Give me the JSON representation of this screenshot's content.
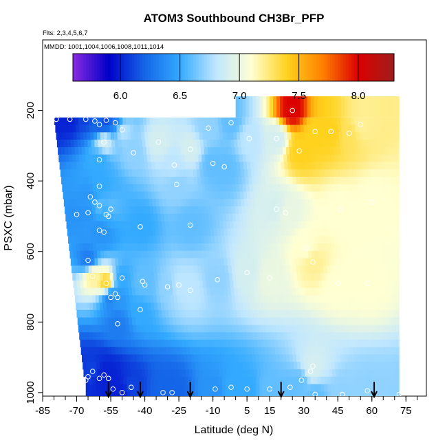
{
  "chart_data": {
    "type": "heatmap",
    "title": "ATOM3 Southbound CH3Br_PFP",
    "flights_label": "Flts: 2,3,4,5,6,7",
    "dates_label": "MMDD: 1001,1004,1006,1008,1011,1014",
    "xlabel": "Latitude (deg N)",
    "ylabel": "PSXC (mbar)",
    "xlim": [
      -85,
      84
    ],
    "ylim": [
      1010,
      0
    ],
    "x_ticks": [
      -85,
      -70,
      -55,
      -40,
      -25,
      -10,
      5,
      15,
      30,
      45,
      60,
      75
    ],
    "y_ticks": [
      200,
      400,
      600,
      800,
      1000
    ],
    "colorbar": {
      "range": [
        5.6,
        8.3
      ],
      "ticks": [
        6.0,
        6.5,
        7.0,
        7.5,
        8.0
      ],
      "tick_labels": [
        "6.0",
        "6.5",
        "7.0",
        "7.5",
        "8.0"
      ],
      "colors": [
        "#8a2be2",
        "#0000c8",
        "#1565e8",
        "#33aaff",
        "#bfe6ff",
        "#ffffd2",
        "#ffd21e",
        "#ff8000",
        "#dc0000",
        "#a01e1e"
      ]
    },
    "profile_markers_lat": [
      -56,
      -42,
      -20,
      20,
      61
    ],
    "samples": [
      {
        "lat": -79,
        "p": 225,
        "v": 6.0
      },
      {
        "lat": -73,
        "p": 225,
        "v": 6.0
      },
      {
        "lat": -66,
        "p": 225,
        "v": 6.1
      },
      {
        "lat": -62,
        "p": 230,
        "v": 6.2
      },
      {
        "lat": -60,
        "p": 240,
        "v": 6.2
      },
      {
        "lat": -57,
        "p": 228,
        "v": 6.1
      },
      {
        "lat": -53,
        "p": 235,
        "v": 6.3
      },
      {
        "lat": -50,
        "p": 255,
        "v": 6.8
      },
      {
        "lat": -58,
        "p": 290,
        "v": 6.9
      },
      {
        "lat": -34,
        "p": 290,
        "v": 6.9
      },
      {
        "lat": -20,
        "p": 310,
        "v": 6.9
      },
      {
        "lat": -12,
        "p": 250,
        "v": 6.7
      },
      {
        "lat": -2,
        "p": 235,
        "v": 6.6
      },
      {
        "lat": 6,
        "p": 280,
        "v": 6.8
      },
      {
        "lat": 18,
        "p": 280,
        "v": 6.9
      },
      {
        "lat": 25,
        "p": 200,
        "v": 8.0
      },
      {
        "lat": 28,
        "p": 315,
        "v": 7.4
      },
      {
        "lat": 35,
        "p": 260,
        "v": 7.4
      },
      {
        "lat": 42,
        "p": 260,
        "v": 7.4
      },
      {
        "lat": 50,
        "p": 265,
        "v": 7.3
      },
      {
        "lat": 55,
        "p": 240,
        "v": 7.2
      },
      {
        "lat": -45,
        "p": 320,
        "v": 6.7
      },
      {
        "lat": -60,
        "p": 340,
        "v": 6.5
      },
      {
        "lat": -5,
        "p": 360,
        "v": 6.6
      },
      {
        "lat": -10,
        "p": 350,
        "v": 6.6
      },
      {
        "lat": -27,
        "p": 355,
        "v": 6.8
      },
      {
        "lat": -26,
        "p": 410,
        "v": 6.7
      },
      {
        "lat": -60,
        "p": 415,
        "v": 6.5
      },
      {
        "lat": -64,
        "p": 445,
        "v": 6.4
      },
      {
        "lat": -62,
        "p": 460,
        "v": 6.5
      },
      {
        "lat": -55,
        "p": 480,
        "v": 6.6
      },
      {
        "lat": -60,
        "p": 470,
        "v": 6.6
      },
      {
        "lat": -70,
        "p": 495,
        "v": 6.4
      },
      {
        "lat": -65,
        "p": 490,
        "v": 6.4
      },
      {
        "lat": -57,
        "p": 495,
        "v": 6.5
      },
      {
        "lat": -56,
        "p": 500,
        "v": 6.5
      },
      {
        "lat": -42,
        "p": 530,
        "v": 6.5
      },
      {
        "lat": -20,
        "p": 525,
        "v": 6.6
      },
      {
        "lat": 18,
        "p": 480,
        "v": 6.9
      },
      {
        "lat": 22,
        "p": 490,
        "v": 7.0
      },
      {
        "lat": 46,
        "p": 480,
        "v": 7.1
      },
      {
        "lat": 60,
        "p": 460,
        "v": 7.1
      },
      {
        "lat": -60,
        "p": 540,
        "v": 6.4
      },
      {
        "lat": -58,
        "p": 545,
        "v": 6.4
      },
      {
        "lat": -65,
        "p": 625,
        "v": 6.3
      },
      {
        "lat": 34,
        "p": 630,
        "v": 7.2
      },
      {
        "lat": 31,
        "p": 590,
        "v": 7.1
      },
      {
        "lat": -63,
        "p": 670,
        "v": 7.2
      },
      {
        "lat": -57,
        "p": 690,
        "v": 7.4
      },
      {
        "lat": -50,
        "p": 675,
        "v": 6.5
      },
      {
        "lat": -41,
        "p": 685,
        "v": 6.6
      },
      {
        "lat": -40,
        "p": 695,
        "v": 6.6
      },
      {
        "lat": -30,
        "p": 700,
        "v": 6.7
      },
      {
        "lat": -25,
        "p": 695,
        "v": 6.8
      },
      {
        "lat": -20,
        "p": 710,
        "v": 6.8
      },
      {
        "lat": -8,
        "p": 680,
        "v": 6.7
      },
      {
        "lat": 5,
        "p": 660,
        "v": 6.9
      },
      {
        "lat": 15,
        "p": 675,
        "v": 7.0
      },
      {
        "lat": 45,
        "p": 690,
        "v": 7.1
      },
      {
        "lat": 58,
        "p": 690,
        "v": 7.1
      },
      {
        "lat": -53,
        "p": 720,
        "v": 6.5
      },
      {
        "lat": -52,
        "p": 730,
        "v": 6.4
      },
      {
        "lat": -42,
        "p": 765,
        "v": 6.5
      },
      {
        "lat": -52,
        "p": 805,
        "v": 6.3
      },
      {
        "lat": -55,
        "p": 730,
        "v": 6.3
      },
      {
        "lat": 34,
        "p": 925,
        "v": 6.9
      },
      {
        "lat": 33,
        "p": 940,
        "v": 6.9
      },
      {
        "lat": -63,
        "p": 940,
        "v": 6.1
      },
      {
        "lat": -65,
        "p": 955,
        "v": 6.1
      },
      {
        "lat": -58,
        "p": 950,
        "v": 6.0
      },
      {
        "lat": -56,
        "p": 960,
        "v": 6.0
      },
      {
        "lat": -66,
        "p": 965,
        "v": 6.0
      },
      {
        "lat": -60,
        "p": 960,
        "v": 6.0
      },
      {
        "lat": -54,
        "p": 990,
        "v": 6.0
      },
      {
        "lat": -50,
        "p": 1000,
        "v": 6.0
      },
      {
        "lat": -46,
        "p": 985,
        "v": 6.1
      },
      {
        "lat": -32,
        "p": 1000,
        "v": 6.2
      },
      {
        "lat": -28,
        "p": 1000,
        "v": 6.2
      },
      {
        "lat": -9,
        "p": 990,
        "v": 6.4
      },
      {
        "lat": -2,
        "p": 985,
        "v": 6.5
      },
      {
        "lat": 5,
        "p": 990,
        "v": 6.5
      },
      {
        "lat": 15,
        "p": 990,
        "v": 6.6
      },
      {
        "lat": 24,
        "p": 985,
        "v": 6.6
      },
      {
        "lat": 29,
        "p": 965,
        "v": 6.6
      },
      {
        "lat": 35,
        "p": 1005,
        "v": 6.6
      },
      {
        "lat": 47,
        "p": 1005,
        "v": 6.7
      },
      {
        "lat": 58,
        "p": 995,
        "v": 6.7
      },
      {
        "lat": 72,
        "p": 1005,
        "v": 6.7
      }
    ]
  }
}
